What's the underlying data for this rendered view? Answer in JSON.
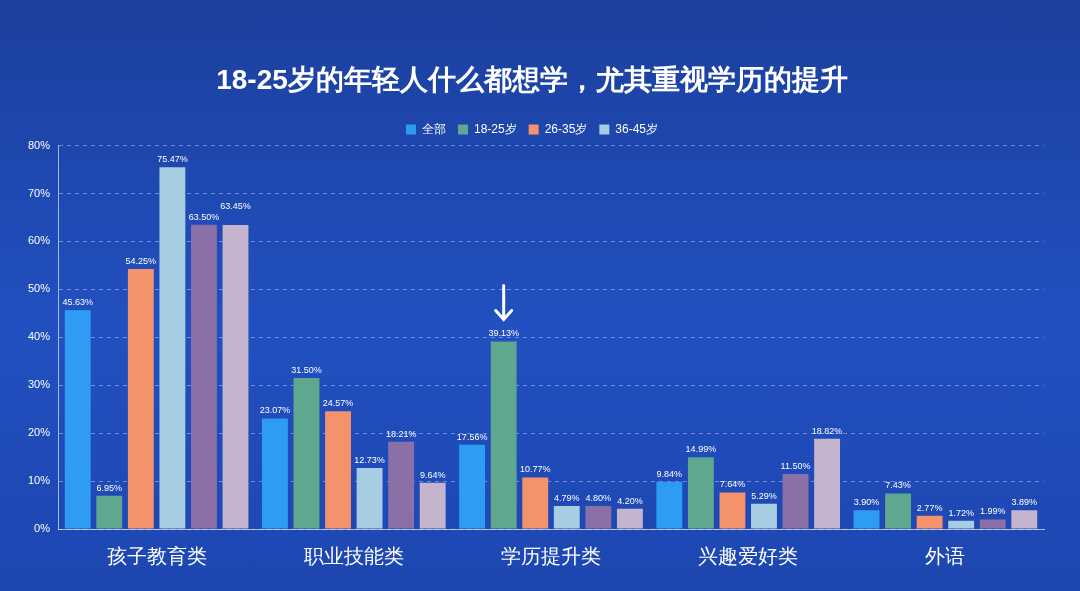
{
  "chart_data": {
    "type": "bar",
    "title": "18-25岁的年轻人什么都想学，尤其重视学历的提升",
    "categories": [
      "孩子教育类",
      "职业技能类",
      "学历提升类",
      "兴趣爱好类",
      "外语"
    ],
    "series": [
      {
        "name": "全部",
        "color": "#2f9cf4",
        "values": [
          45.63,
          23.07,
          17.56,
          9.84,
          3.9
        ],
        "value_labels": [
          "45.63%",
          "23.07%",
          "17.56%",
          "9.84%",
          "3.90%"
        ]
      },
      {
        "name": "18-25岁",
        "color": "#5fa88f",
        "values": [
          6.95,
          31.5,
          39.13,
          14.99,
          7.43
        ],
        "value_labels": [
          "6.95%",
          "31.50%",
          "39.13%",
          "14.99%",
          "7.43%"
        ]
      },
      {
        "name": "26-35岁",
        "color": "#f4936b",
        "values": [
          54.25,
          24.57,
          10.77,
          7.64,
          2.77
        ],
        "value_labels": [
          "54.25%",
          "24.57%",
          "10.77%",
          "7.64%",
          "2.77%"
        ]
      },
      {
        "name": "36-45岁",
        "color": "#a6cde2",
        "values": [
          75.47,
          12.73,
          4.79,
          5.29,
          1.72
        ],
        "value_labels": [
          "75.47%",
          "12.73%",
          "4.79%",
          "5.29%",
          "1.72%"
        ]
      },
      {
        "color": "#8b6fa7",
        "values": [
          63.5,
          18.21,
          4.8,
          11.5,
          1.99
        ],
        "value_labels": [
          "63.50%",
          "18.21%",
          "4.80%",
          "11.50%",
          "1.99%"
        ]
      },
      {
        "color": "#c5b4cd",
        "values": [
          63.45,
          9.64,
          4.2,
          18.82,
          3.89
        ],
        "value_labels": [
          "63.45%",
          "9.64%",
          "4.20%",
          "18.82%",
          "3.89%"
        ]
      }
    ],
    "ylim": [
      0,
      80
    ],
    "yticks": [
      {
        "value": 0,
        "label": "0%"
      },
      {
        "value": 10,
        "label": "10%"
      },
      {
        "value": 20,
        "label": "20%"
      },
      {
        "value": 30,
        "label": "30%"
      },
      {
        "value": 40,
        "label": "40%"
      },
      {
        "value": 50,
        "label": "50%"
      },
      {
        "value": 60,
        "label": "60%"
      },
      {
        "value": 70,
        "label": "70%"
      },
      {
        "value": 80,
        "label": "80%"
      }
    ],
    "grid": true,
    "legend": "top",
    "data_labels": true
  }
}
